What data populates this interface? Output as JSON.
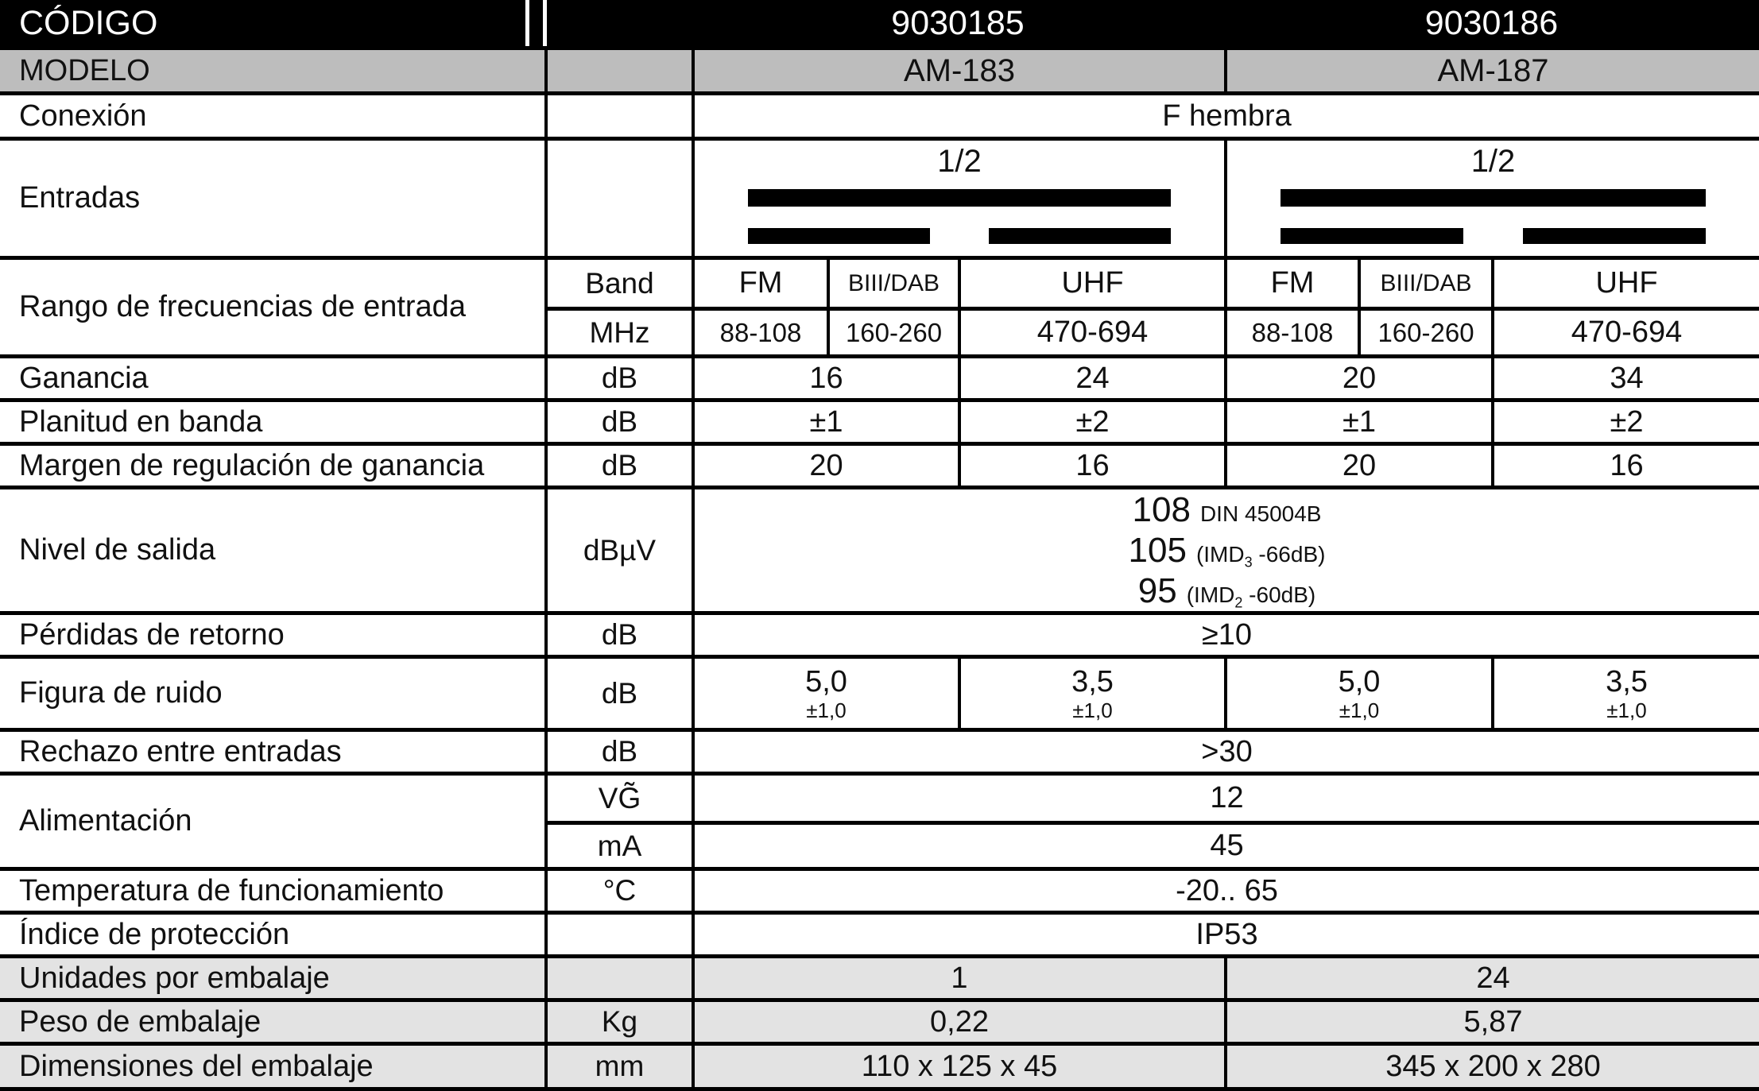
{
  "codigo": {
    "label": "CÓDIGO",
    "codes": [
      "9030185",
      "9030186"
    ]
  },
  "modelo": {
    "label": "MODELO",
    "models": [
      "AM-183",
      "AM-187"
    ]
  },
  "conexion": {
    "label": "Conexión",
    "value": "F hembra"
  },
  "entradas": {
    "label": "Entradas",
    "ratio": "1/2"
  },
  "rango": {
    "label": "Rango de frecuencias de entrada",
    "band_unit": "Band",
    "mhz_unit": "MHz",
    "bands": [
      "FM",
      "BIII/DAB",
      "UHF"
    ],
    "ranges": [
      "88-108",
      "160-260",
      "470-694"
    ]
  },
  "ganancia": {
    "label": "Ganancia",
    "unit": "dB",
    "values": [
      "16",
      "24",
      "20",
      "34"
    ]
  },
  "planitud": {
    "label": "Planitud en banda",
    "unit": "dB",
    "values": [
      "±1",
      "±2",
      "±1",
      "±2"
    ]
  },
  "margen": {
    "label": "Margen de regulación de ganancia",
    "unit": "dB",
    "values": [
      "20",
      "16",
      "20",
      "16"
    ]
  },
  "nivel": {
    "label": "Nivel de salida",
    "unit": "dBµV",
    "lines": [
      {
        "num": "108",
        "pre": "DIN 45004B",
        "sub": "",
        "post": ""
      },
      {
        "num": "105",
        "pre": "(IMD",
        "sub": "3",
        "post": " -66dB)"
      },
      {
        "num": "95",
        "pre": "(IMD",
        "sub": "2",
        "post": " -60dB)"
      }
    ]
  },
  "perdidas": {
    "label": "Pérdidas de retorno",
    "unit": "dB",
    "value": "≥10"
  },
  "figura": {
    "label": "Figura de ruido",
    "unit": "dB",
    "values": [
      "5,0",
      "3,5",
      "5,0",
      "3,5"
    ],
    "tolerance": "±1,0"
  },
  "rechazo": {
    "label": "Rechazo entre entradas",
    "unit": "dB",
    "value": ">30"
  },
  "alimentacion": {
    "label": "Alimentación",
    "rows": [
      {
        "unit": "VG̃",
        "value": "12"
      },
      {
        "unit": "mA",
        "value": "45"
      }
    ]
  },
  "temperatura": {
    "label": "Temperatura de funcionamiento",
    "unit": "°C",
    "value": "-20.. 65"
  },
  "indice": {
    "label": "Índice de protección",
    "unit": "",
    "value": "IP53"
  },
  "unidades": {
    "label": "Unidades por embalaje",
    "unit": "",
    "values": [
      "1",
      "24"
    ]
  },
  "peso": {
    "label": "Peso de embalaje",
    "unit": "Kg",
    "values": [
      "0,22",
      "5,87"
    ]
  },
  "dimensiones": {
    "label": "Dimensiones del embalaje",
    "unit": "mm",
    "values": [
      "110 x 125 x 45",
      "345 x 200 x 280"
    ]
  },
  "colors": {
    "header_bg": "#000000",
    "header_text": "#ffffff",
    "modelo_bg": "#bdbdbd",
    "packaging_bg": "#e3e3e3",
    "border": "#000000"
  }
}
